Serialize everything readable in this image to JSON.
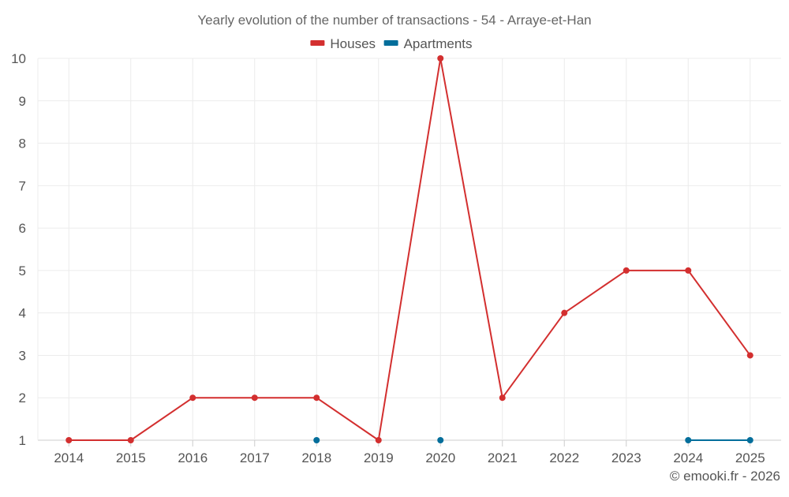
{
  "chart_data": {
    "type": "line",
    "title": "Yearly evolution of the number of transactions - 54 - Arraye-et-Han",
    "categories": [
      "2014",
      "2015",
      "2016",
      "2017",
      "2018",
      "2019",
      "2020",
      "2021",
      "2022",
      "2023",
      "2024",
      "2025"
    ],
    "ylim": [
      1,
      10
    ],
    "yticks": [
      1,
      2,
      3,
      4,
      5,
      6,
      7,
      8,
      9,
      10
    ],
    "grid": true,
    "legend_position": "top-center",
    "series": [
      {
        "name": "Houses",
        "color": "#d32f2f",
        "values": [
          1,
          1,
          2,
          2,
          2,
          1,
          10,
          2,
          4,
          5,
          5,
          3
        ]
      },
      {
        "name": "Apartments",
        "color": "#036e9b",
        "values": [
          null,
          null,
          null,
          null,
          1,
          null,
          1,
          null,
          null,
          null,
          1,
          1
        ]
      }
    ]
  },
  "credit": "© emooki.fr - 2026"
}
